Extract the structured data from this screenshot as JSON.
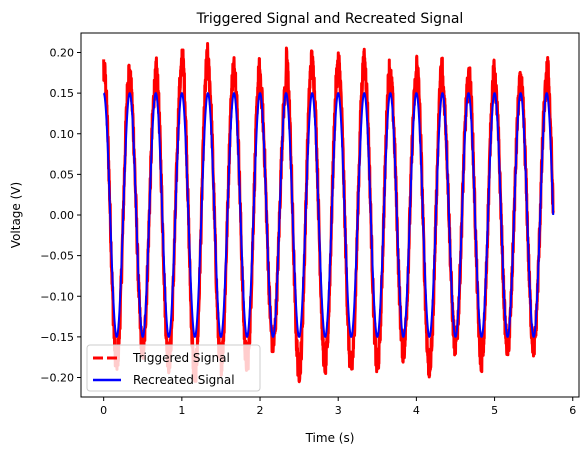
{
  "chart_data": {
    "type": "line",
    "title": "Triggered Signal and Recreated Signal",
    "xlabel": "Time (s)",
    "ylabel": "Voltage (V)",
    "xlim": [
      -0.29,
      6.08
    ],
    "ylim": [
      -0.224,
      0.224
    ],
    "xticks": [
      0,
      1,
      2,
      3,
      4,
      5,
      6
    ],
    "xtick_labels": [
      "0",
      "1",
      "2",
      "3",
      "4",
      "5",
      "6"
    ],
    "yticks": [
      -0.2,
      -0.15,
      -0.1,
      -0.05,
      0.0,
      0.05,
      0.1,
      0.15,
      0.2
    ],
    "ytick_labels": [
      "−0.20",
      "−0.15",
      "−0.10",
      "−0.05",
      "0.00",
      "0.05",
      "0.10",
      "0.15",
      "0.20"
    ],
    "grid": false,
    "legend_position": "bottom-left",
    "x_range": [
      0,
      5.75
    ],
    "frequency_hz": 3.0,
    "series": [
      {
        "name": "Triggered Signal",
        "color": "#ff0000",
        "style": "dashed",
        "amplitude_min": 0.16,
        "amplitude_max": 0.205,
        "noisy": true
      },
      {
        "name": "Recreated Signal",
        "color": "#0000ff",
        "style": "solid",
        "amplitude": 0.15,
        "noisy": false
      }
    ]
  }
}
